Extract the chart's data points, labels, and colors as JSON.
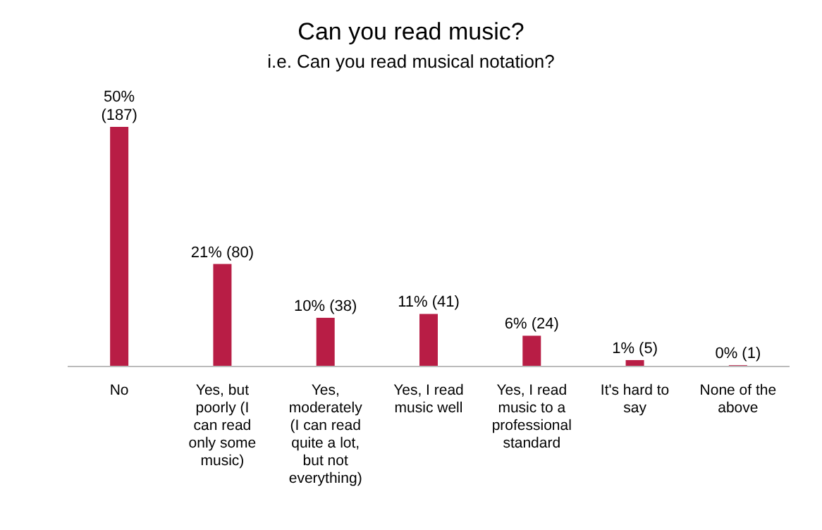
{
  "chart_data": {
    "type": "bar",
    "title": "Can you read music?",
    "subtitle": "i.e. Can you read musical notation?",
    "categories": [
      "No",
      "Yes, but poorly (I can read only some music)",
      "Yes, moderately (I can read quite a lot, but not everything)",
      "Yes, I read music well",
      "Yes, I read music to a professional standard",
      "It's hard to say",
      "None of the above"
    ],
    "values": [
      187,
      80,
      38,
      41,
      24,
      5,
      1
    ],
    "value_labels": [
      "50% (187)",
      "21% (80)",
      "10% (38)",
      "11% (41)",
      "6% (24)",
      "1% (5)",
      "0% (1)"
    ],
    "color": "#b81d45"
  }
}
